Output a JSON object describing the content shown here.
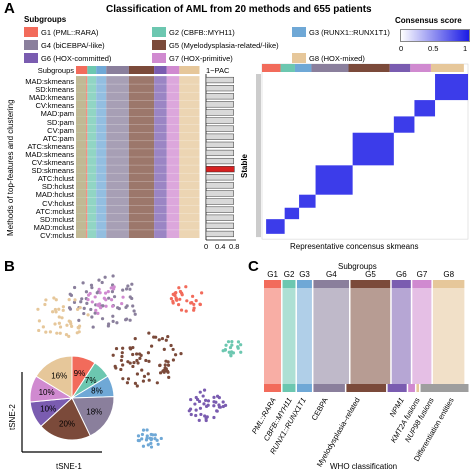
{
  "title": "Classification of AML from 20 methods and 655 patients",
  "panel_letters": {
    "a": "A",
    "b": "B",
    "c": "C"
  },
  "legend": {
    "header": "Subgroups",
    "items": [
      {
        "label": "G1 (PML::RARA)",
        "color": "#f26b5b"
      },
      {
        "label": "G2 (CBFB::MYH11)",
        "color": "#6cc7b0"
      },
      {
        "label": "G3 (RUNX1::RUNX1T1)",
        "color": "#6fa8d6"
      },
      {
        "label": "G4 (biCEBPA/-like)",
        "color": "#8a7f9c"
      },
      {
        "label": "G5 (Myelodysplasia-related/-like)",
        "color": "#7b4a3a"
      },
      {
        "label": "G6 (HOX-committed)",
        "color": "#7a5cb0"
      },
      {
        "label": "G7 (HOX-primitive)",
        "color": "#d08ad0"
      },
      {
        "label": "G8 (HOX-mixed)",
        "color": "#e6c79a"
      }
    ]
  },
  "consensus_scale": {
    "title": "Consensus score",
    "ticks": [
      "0",
      "0.5",
      "1"
    ]
  },
  "heatmap_a": {
    "top_label": "Subgroups",
    "ylabel": "Methods of top-features and clustering",
    "methods": [
      "MAD:skmeans",
      "SD:kmeans",
      "MAD:kmeans",
      "CV:kmeans",
      "MAD:pam",
      "SD:pam",
      "CV:pam",
      "ATC:pam",
      "ATC:skmeans",
      "MAD:skmeans",
      "CV:skmeans",
      "SD:skmeans",
      "ATC:hclust",
      "SD:hclust",
      "MAD:hclust",
      "CV:hclust",
      "ATC:mclust",
      "SD:mclust",
      "MAD:mclust",
      "CV:mclust"
    ],
    "stable_label": "Stable",
    "pac_title": "1−PAC",
    "pac_ticks": [
      "0",
      "0.4",
      "0.8"
    ]
  },
  "chart_data": [
    {
      "type": "bar",
      "title": "1−PAC",
      "categories": [
        "MAD:skmeans",
        "SD:kmeans",
        "MAD:kmeans",
        "CV:kmeans",
        "MAD:pam",
        "SD:pam",
        "CV:pam",
        "ATC:pam",
        "ATC:skmeans",
        "MAD:skmeans",
        "CV:skmeans",
        "SD:skmeans",
        "ATC:hclust",
        "SD:hclust",
        "MAD:hclust",
        "CV:hclust",
        "ATC:mclust",
        "SD:mclust",
        "MAD:mclust",
        "CV:mclust"
      ],
      "values": [
        0.83,
        0.83,
        0.83,
        0.83,
        0.83,
        0.83,
        0.83,
        0.83,
        0.83,
        0.83,
        0.83,
        0.85,
        0.83,
        0.83,
        0.83,
        0.83,
        0.83,
        0.83,
        0.83,
        0.83
      ],
      "highlight": "SD:skmeans",
      "highlight_color": "#d62020",
      "xlim": [
        0,
        0.9
      ]
    },
    {
      "type": "pie",
      "xlabel": "tSNE-1",
      "ylabel": "tSNE-2",
      "slices": [
        {
          "label": "9%",
          "value": 9,
          "color": "#f26b5b"
        },
        {
          "label": "7%",
          "value": 7,
          "color": "#6cc7b0"
        },
        {
          "label": "8%",
          "value": 8,
          "color": "#6fa8d6"
        },
        {
          "label": "18%",
          "value": 18,
          "color": "#8a7f9c"
        },
        {
          "label": "20%",
          "value": 20,
          "color": "#7b4a3a"
        },
        {
          "label": "10%",
          "value": 10,
          "color": "#7a5cb0"
        },
        {
          "label": "10%",
          "value": 10,
          "color": "#d08ad0"
        },
        {
          "label": "16%",
          "value": 16,
          "color": "#e6c79a"
        }
      ]
    },
    {
      "type": "alluvial",
      "top_title": "Subgroups",
      "groups": [
        "G1",
        "G2",
        "G3",
        "G4",
        "G5",
        "G6",
        "G7",
        "G8"
      ],
      "xlabel": "WHO classification",
      "who_categories": [
        "PML::RARA",
        "CBFB::MYH11",
        "RUNX1::RUNX1T1",
        "CEBPA",
        "Myelodysplasia–related",
        "NPM1",
        "KMT2A fusions",
        "NUP98 fusions",
        "Differentiation entities"
      ]
    }
  ],
  "heatmap_b_label": "Representative concensus skmeans"
}
